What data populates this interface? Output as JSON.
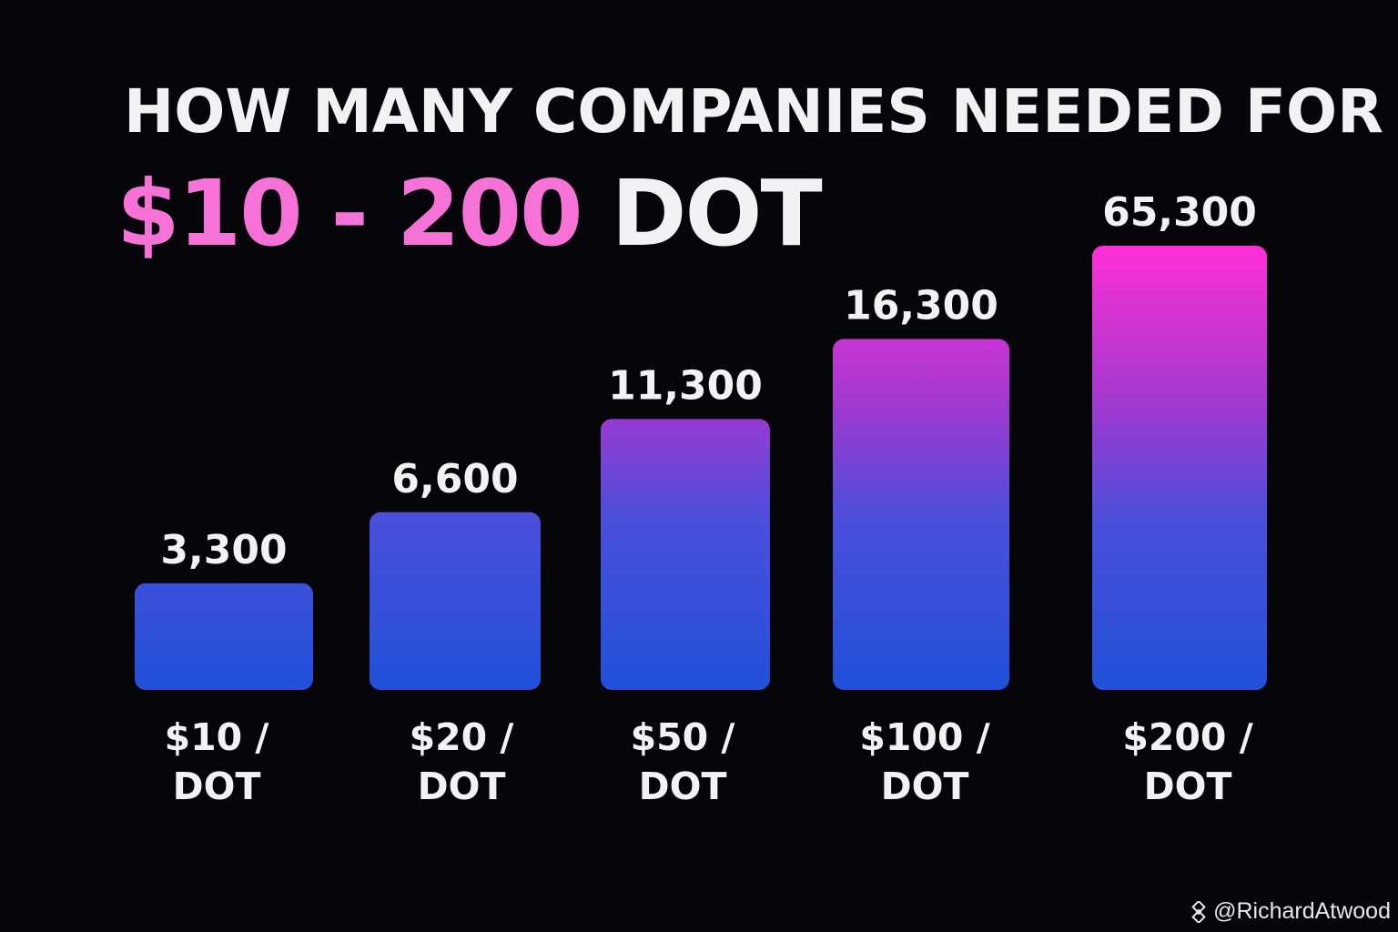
{
  "chart_data": {
    "type": "bar",
    "title_line1": "HOW MANY COMPANIES NEEDED FOR",
    "title_line2_accent": "$10 - 200",
    "title_line2_plain": "DOT",
    "categories": [
      [
        "$10 /",
        "DOT"
      ],
      [
        "$20 /",
        "DOT"
      ],
      [
        "$50 /",
        "DOT"
      ],
      [
        "$100 /",
        "DOT"
      ],
      [
        "$200 /",
        "DOT"
      ]
    ],
    "values": [
      3300,
      6600,
      11300,
      16300,
      65300
    ],
    "value_labels": [
      "3,300",
      "6,600",
      "11,300",
      "16,300",
      "65,300"
    ],
    "bar_levels": [
      0.24,
      0.4,
      0.61,
      0.79,
      1.0
    ],
    "xlabel": "",
    "ylabel": "",
    "grid": false,
    "colors": {
      "bar_bottom": "#2150d9",
      "bar_mid": "#4a4fdc",
      "bar_upper": "#9a3ad0",
      "bar_top": "#ff2fd6",
      "accent_text": "#f772d6",
      "background": "#05050a"
    }
  },
  "watermark": {
    "icon": "diamond-logo-icon",
    "text": "@RichardAtwood"
  }
}
